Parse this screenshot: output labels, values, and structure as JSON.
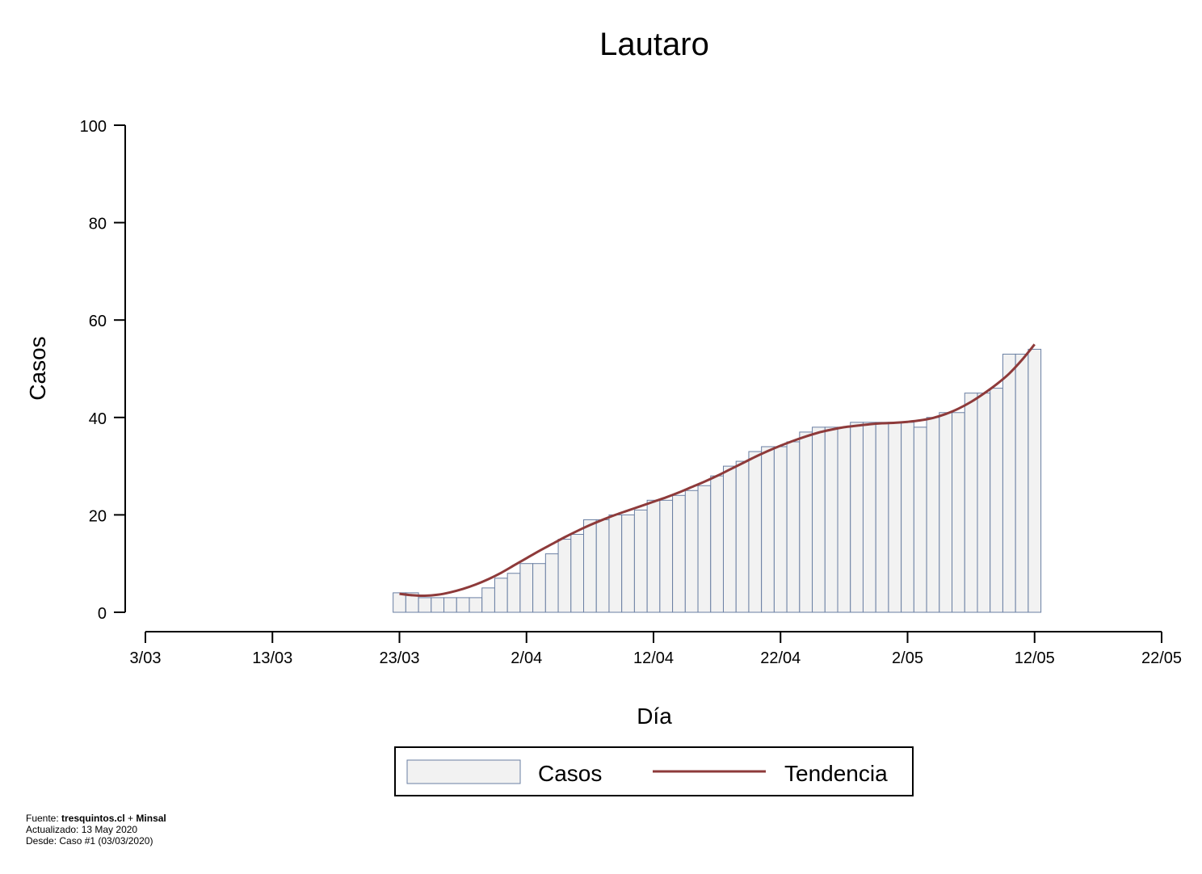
{
  "chart_data": {
    "type": "bar",
    "title": "Lautaro",
    "xlabel": "Día",
    "ylabel": "Casos",
    "ylim": [
      0,
      100
    ],
    "yticks": [
      0,
      20,
      40,
      60,
      80,
      100
    ],
    "xlim": [
      "2020-03-03",
      "2020-05-22"
    ],
    "xticks": [
      {
        "date": "2020-03-03",
        "label": "3/03"
      },
      {
        "date": "2020-03-13",
        "label": "13/03"
      },
      {
        "date": "2020-03-23",
        "label": "23/03"
      },
      {
        "date": "2020-04-02",
        "label": "2/04"
      },
      {
        "date": "2020-04-12",
        "label": "12/04"
      },
      {
        "date": "2020-04-22",
        "label": "22/04"
      },
      {
        "date": "2020-05-02",
        "label": "2/05"
      },
      {
        "date": "2020-05-12",
        "label": "12/05"
      },
      {
        "date": "2020-05-22",
        "label": "22/05"
      }
    ],
    "first_date": "2020-03-23",
    "series": [
      {
        "name": "Casos",
        "kind": "bar",
        "color": "#f2f2f2",
        "edge_color": "#6a7fa3",
        "values": [
          4,
          4,
          3,
          3,
          3,
          3,
          3,
          5,
          7,
          8,
          10,
          10,
          12,
          15,
          16,
          19,
          19,
          20,
          20,
          21,
          23,
          23,
          24,
          25,
          26,
          28,
          30,
          31,
          33,
          34,
          34,
          35,
          37,
          38,
          38,
          38,
          39,
          39,
          39,
          39,
          39,
          38,
          40,
          41,
          41,
          45,
          45,
          46,
          53,
          53,
          54
        ]
      },
      {
        "name": "Tendencia",
        "kind": "line",
        "color": "#8e3a3a",
        "values": [
          3.8,
          3.5,
          3.4,
          3.6,
          4.1,
          4.8,
          5.7,
          6.8,
          8.1,
          9.6,
          11.1,
          12.6,
          14.0,
          15.4,
          16.7,
          17.9,
          19.0,
          20.0,
          20.9,
          21.8,
          22.7,
          23.6,
          24.6,
          25.7,
          26.8,
          28.0,
          29.3,
          30.6,
          31.9,
          33.1,
          34.2,
          35.2,
          36.1,
          36.9,
          37.5,
          38.0,
          38.3,
          38.6,
          38.8,
          38.9,
          39.1,
          39.4,
          39.9,
          40.7,
          41.8,
          43.2,
          44.9,
          46.8,
          49.0,
          51.8,
          55.0
        ]
      }
    ],
    "legend": {
      "position": "bottom",
      "entries": [
        "Casos",
        "Tendencia"
      ]
    },
    "grid": false
  },
  "footer": {
    "fuente_prefix": "Fuente: ",
    "fuente_source1": "tresquintos.cl",
    "fuente_sep": " + ",
    "fuente_source2": "Minsal",
    "actualizado": "Actualizado: 13 May 2020",
    "desde": "Desde: Caso #1  (03/03/2020)"
  }
}
